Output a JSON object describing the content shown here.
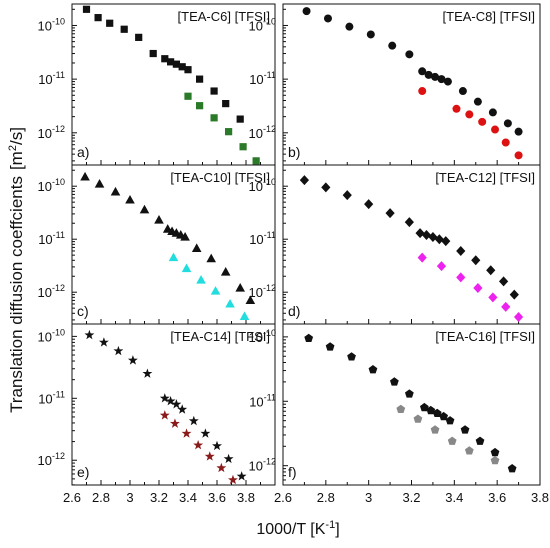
{
  "figure": {
    "ylabel_main": "Translation diffusion coeffcients",
    "ylabel_unit_base": "[m",
    "ylabel_unit_sup": "2",
    "ylabel_unit_tail": "/s]",
    "xlabel_base": "1000/T [K",
    "xlabel_sup": "-1",
    "xlabel_tail": "]"
  },
  "chart_data": [
    {
      "type": "scatter",
      "panel_label": "a)",
      "title": "[TEA-C6] [TFSI]",
      "xlim": [
        2.6,
        4.0
      ],
      "ylim_log10": [
        -12.6,
        -9.6
      ],
      "series": [
        {
          "marker": "square",
          "color": "#111111",
          "points": [
            [
              2.7,
              2e-10
            ],
            [
              2.78,
              1.4e-10
            ],
            [
              2.86,
              1.1e-10
            ],
            [
              2.96,
              8.5e-11
            ],
            [
              3.06,
              6e-11
            ],
            [
              3.16,
              3e-11
            ],
            [
              3.24,
              2.4e-11
            ],
            [
              3.28,
              2.1e-11
            ],
            [
              3.32,
              1.9e-11
            ],
            [
              3.36,
              1.7e-11
            ],
            [
              3.4,
              1.5e-11
            ],
            [
              3.48,
              1e-11
            ],
            [
              3.58,
              6e-12
            ],
            [
              3.66,
              3.5e-12
            ],
            [
              3.76,
              1.8e-12
            ]
          ]
        },
        {
          "marker": "square",
          "color": "#2a7a2a",
          "points": [
            [
              3.4,
              4.8e-12
            ],
            [
              3.48,
              3.2e-12
            ],
            [
              3.58,
              1.9e-12
            ],
            [
              3.68,
              1.05e-12
            ],
            [
              3.78,
              5.5e-13
            ],
            [
              3.87,
              3e-13
            ]
          ]
        }
      ]
    },
    {
      "type": "scatter",
      "panel_label": "b)",
      "title": "[TEA-C8] [TFSI]",
      "xlim": [
        2.6,
        3.8
      ],
      "ylim_log10": [
        -12.6,
        -9.6
      ],
      "series": [
        {
          "marker": "circle",
          "color": "#111111",
          "points": [
            [
              2.71,
              1.85e-10
            ],
            [
              2.81,
              1.35e-10
            ],
            [
              2.91,
              9.5e-11
            ],
            [
              3.01,
              6.8e-11
            ],
            [
              3.11,
              4.2e-11
            ],
            [
              3.19,
              2.9e-11
            ],
            [
              3.25,
              1.4e-11
            ],
            [
              3.28,
              1.2e-11
            ],
            [
              3.31,
              1.1e-11
            ],
            [
              3.34,
              1e-11
            ],
            [
              3.37,
              9e-12
            ],
            [
              3.44,
              6e-12
            ],
            [
              3.51,
              3.8e-12
            ],
            [
              3.58,
              2.4e-12
            ],
            [
              3.65,
              1.5e-12
            ],
            [
              3.7,
              1.05e-12
            ]
          ]
        },
        {
          "marker": "circle",
          "color": "#dd1111",
          "points": [
            [
              3.25,
              6e-12
            ],
            [
              3.41,
              2.8e-12
            ],
            [
              3.47,
              2.2e-12
            ],
            [
              3.53,
              1.6e-12
            ],
            [
              3.59,
              1.15e-12
            ],
            [
              3.64,
              6.6e-13
            ],
            [
              3.7,
              3.8e-13
            ]
          ]
        }
      ]
    },
    {
      "type": "scatter",
      "panel_label": "c)",
      "title": "[TEA-C10] [TFSI]",
      "xlim": [
        2.6,
        4.0
      ],
      "ylim_log10": [
        -12.6,
        -9.6
      ],
      "series": [
        {
          "marker": "triangle",
          "color": "#111111",
          "points": [
            [
              2.69,
              1.5e-10
            ],
            [
              2.79,
              1.1e-10
            ],
            [
              2.9,
              7.8e-11
            ],
            [
              3.0,
              5.5e-11
            ],
            [
              3.1,
              3.6e-11
            ],
            [
              3.2,
              2.3e-11
            ],
            [
              3.26,
              1.55e-11
            ],
            [
              3.29,
              1.4e-11
            ],
            [
              3.32,
              1.3e-11
            ],
            [
              3.35,
              1.2e-11
            ],
            [
              3.38,
              1.1e-11
            ],
            [
              3.46,
              6.7e-12
            ],
            [
              3.56,
              4.3e-12
            ],
            [
              3.66,
              2.4e-12
            ],
            [
              3.76,
              1.2e-12
            ],
            [
              3.83,
              7e-13
            ]
          ]
        },
        {
          "marker": "triangle",
          "color": "#22dddd",
          "points": [
            [
              3.3,
              4.5e-12
            ],
            [
              3.39,
              2.8e-12
            ],
            [
              3.49,
              1.7e-12
            ],
            [
              3.59,
              1.05e-12
            ],
            [
              3.69,
              6e-13
            ],
            [
              3.79,
              3.5e-13
            ]
          ]
        }
      ]
    },
    {
      "type": "scatter",
      "panel_label": "d)",
      "title": "[TEA-C12] [TFSI]",
      "xlim": [
        2.6,
        3.8
      ],
      "ylim_log10": [
        -12.6,
        -9.6
      ],
      "series": [
        {
          "marker": "diamond",
          "color": "#111111",
          "points": [
            [
              2.7,
              1.3e-10
            ],
            [
              2.8,
              9.5e-11
            ],
            [
              2.9,
              6.8e-11
            ],
            [
              3.0,
              4.6e-11
            ],
            [
              3.1,
              3.1e-11
            ],
            [
              3.19,
              2.1e-11
            ],
            [
              3.24,
              1.3e-11
            ],
            [
              3.27,
              1.2e-11
            ],
            [
              3.3,
              1.1e-11
            ],
            [
              3.33,
              1e-11
            ],
            [
              3.36,
              9.2e-12
            ],
            [
              3.43,
              6e-12
            ],
            [
              3.5,
              4e-12
            ],
            [
              3.57,
              2.6e-12
            ],
            [
              3.63,
              1.6e-12
            ],
            [
              3.68,
              9e-13
            ]
          ]
        },
        {
          "marker": "diamond",
          "color": "#ee22ee",
          "points": [
            [
              3.25,
              4.5e-12
            ],
            [
              3.34,
              3.1e-12
            ],
            [
              3.43,
              1.9e-12
            ],
            [
              3.51,
              1.2e-12
            ],
            [
              3.58,
              8e-13
            ],
            [
              3.64,
              5.3e-13
            ],
            [
              3.7,
              3.4e-13
            ]
          ]
        }
      ]
    },
    {
      "type": "scatter",
      "panel_label": "e)",
      "title": "[TEA-C14] [TFSI]",
      "xlim": [
        2.6,
        4.0
      ],
      "ylim_log10": [
        -12.4,
        -9.8
      ],
      "series": [
        {
          "marker": "star",
          "color": "#111111",
          "points": [
            [
              2.72,
              1.05e-10
            ],
            [
              2.82,
              8e-11
            ],
            [
              2.92,
              5.8e-11
            ],
            [
              3.02,
              4.1e-11
            ],
            [
              3.12,
              2.5e-11
            ],
            [
              3.24,
              1e-11
            ],
            [
              3.28,
              9e-12
            ],
            [
              3.32,
              8e-12
            ],
            [
              3.36,
              6.6e-12
            ],
            [
              3.44,
              4.3e-12
            ],
            [
              3.52,
              2.7e-12
            ],
            [
              3.6,
              1.7e-12
            ],
            [
              3.68,
              1.05e-12
            ],
            [
              3.77,
              5.5e-13
            ]
          ]
        },
        {
          "marker": "star",
          "color": "#8b1a1a",
          "points": [
            [
              3.24,
              5.3e-12
            ],
            [
              3.31,
              3.9e-12
            ],
            [
              3.39,
              2.7e-12
            ],
            [
              3.47,
              1.75e-12
            ],
            [
              3.55,
              1.15e-12
            ],
            [
              3.63,
              7.5e-13
            ],
            [
              3.71,
              4.8e-13
            ]
          ]
        }
      ]
    },
    {
      "type": "scatter",
      "panel_label": "f)",
      "title": "[TEA-C16] [TFSI]",
      "xlim": [
        2.6,
        3.8
      ],
      "ylim_log10": [
        -12.3,
        -9.8
      ],
      "series": [
        {
          "marker": "pentagon",
          "color": "#111111",
          "points": [
            [
              2.72,
              9.5e-11
            ],
            [
              2.82,
              7e-11
            ],
            [
              2.92,
              4.9e-11
            ],
            [
              3.02,
              3.1e-11
            ],
            [
              3.12,
              2e-11
            ],
            [
              3.19,
              1.3e-11
            ],
            [
              3.26,
              8e-12
            ],
            [
              3.29,
              7.2e-12
            ],
            [
              3.32,
              6.5e-12
            ],
            [
              3.35,
              5.8e-12
            ],
            [
              3.38,
              5e-12
            ],
            [
              3.45,
              3.6e-12
            ],
            [
              3.52,
              2.4e-12
            ],
            [
              3.59,
              1.6e-12
            ],
            [
              3.67,
              9e-13
            ]
          ]
        },
        {
          "marker": "pentagon",
          "color": "#888888",
          "points": [
            [
              3.15,
              7.5e-12
            ],
            [
              3.23,
              5.3e-12
            ],
            [
              3.31,
              3.6e-12
            ],
            [
              3.39,
              2.4e-12
            ],
            [
              3.47,
              1.7e-12
            ],
            [
              3.59,
              1.2e-12
            ]
          ]
        }
      ]
    }
  ]
}
